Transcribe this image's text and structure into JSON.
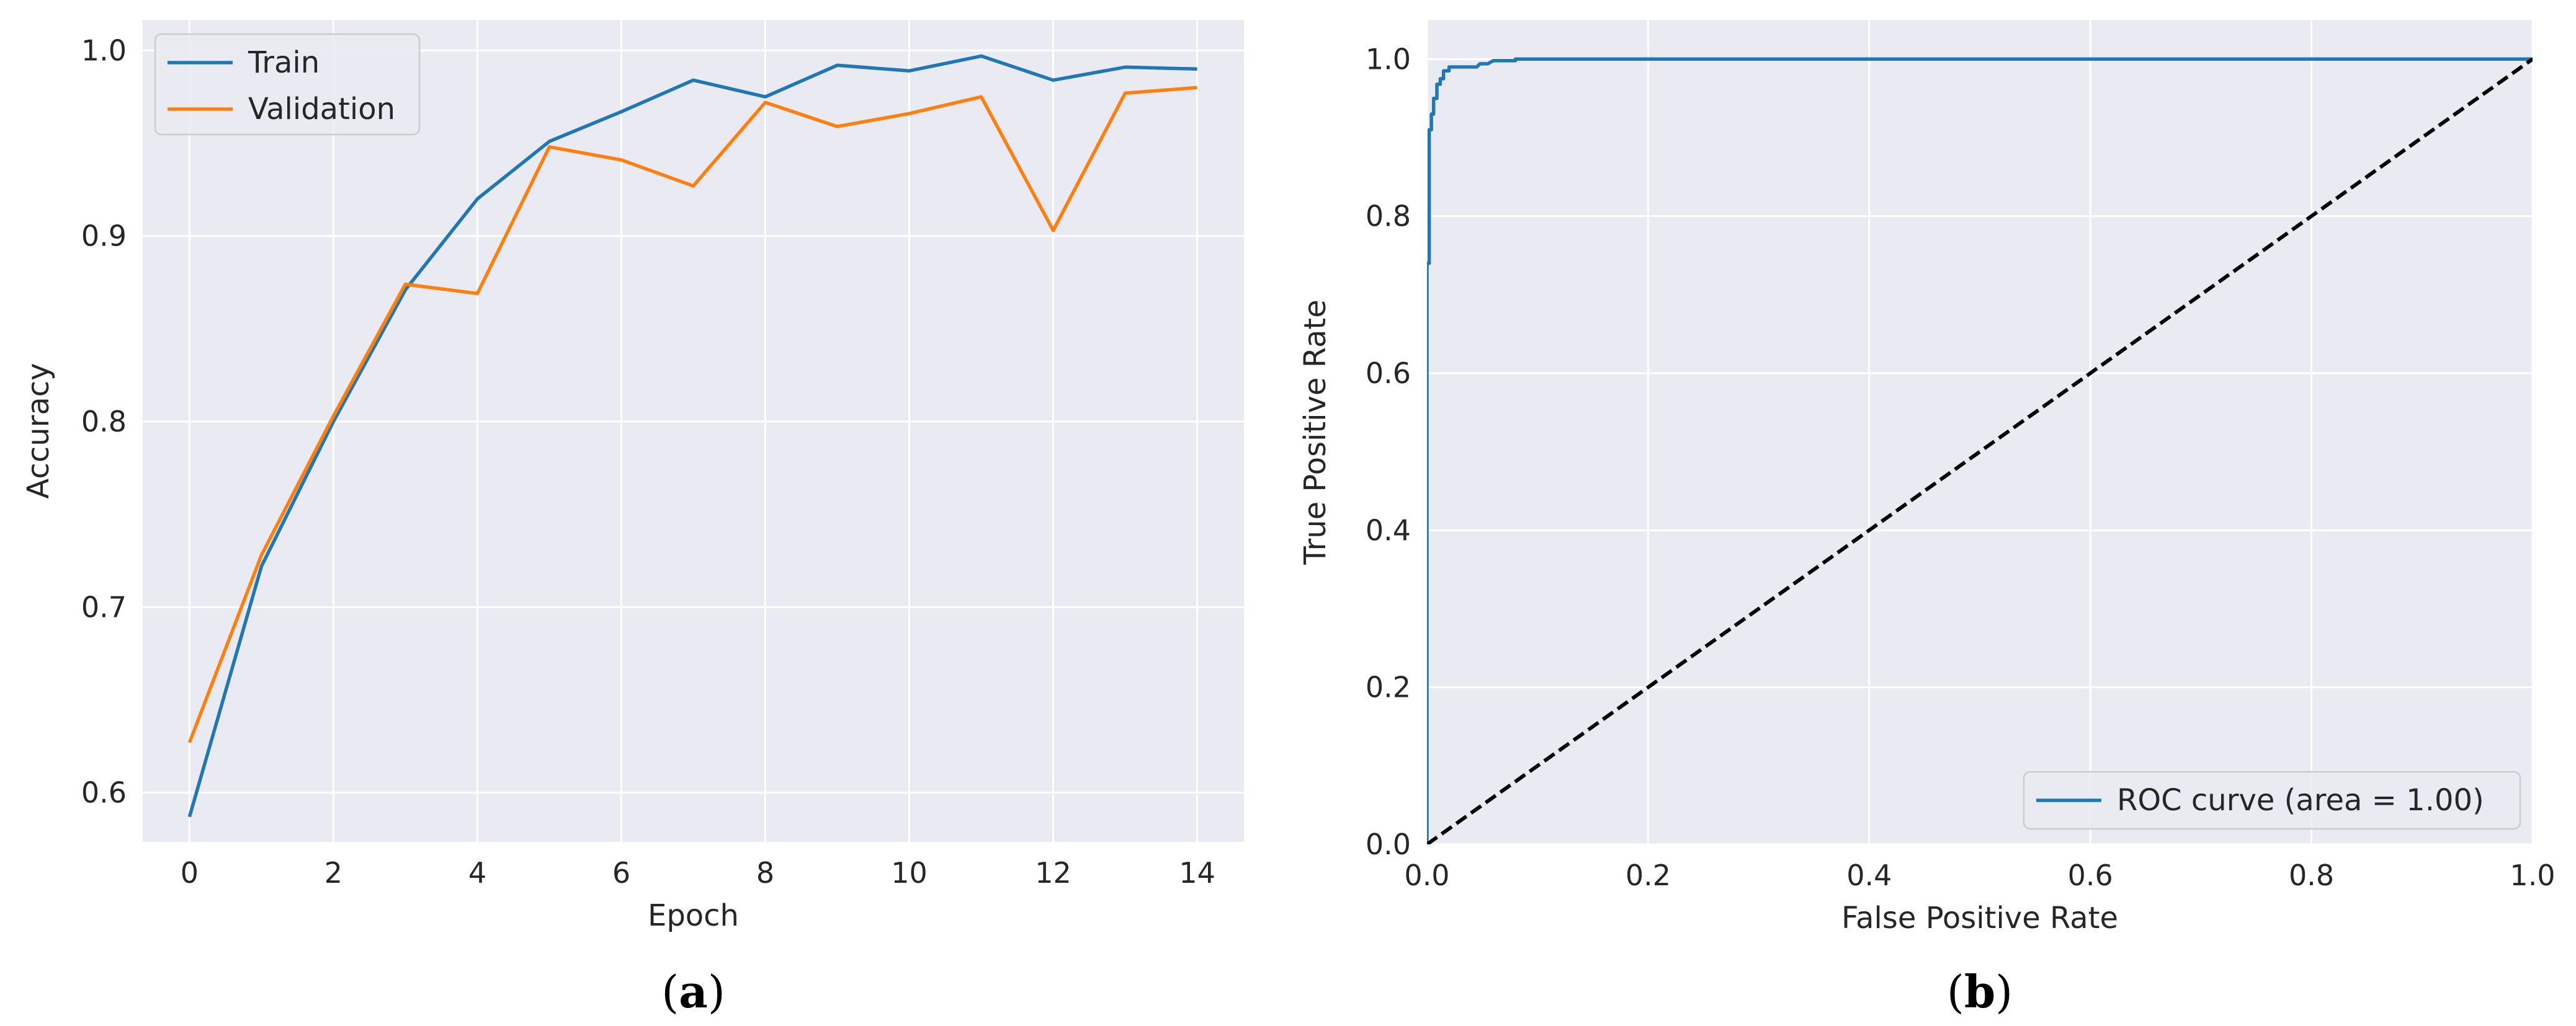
{
  "colors": {
    "axes_bg": "#eaeaf2",
    "grid": "#ffffff",
    "train": "#1f77b4",
    "validation": "#ff7f0e",
    "roc": "#1f77b4",
    "diagonal": "#000000",
    "text": "#262626"
  },
  "chart_data": [
    {
      "type": "line",
      "caption": "a",
      "xlabel": "Epoch",
      "ylabel": "Accuracy",
      "xlim": [
        -0.65,
        14.65
      ],
      "ylim": [
        0.5735,
        1.0165
      ],
      "xticks": [
        0,
        2,
        4,
        6,
        8,
        10,
        12,
        14
      ],
      "yticks": [
        0.6,
        0.7,
        0.8,
        0.9,
        1.0
      ],
      "grid": true,
      "legend_position": "upper-left",
      "x": [
        0,
        1,
        2,
        3,
        4,
        5,
        6,
        7,
        8,
        9,
        10,
        11,
        12,
        13,
        14
      ],
      "series": [
        {
          "name": "Train",
          "color_key": "train",
          "values": [
            0.587,
            0.722,
            0.8,
            0.871,
            0.92,
            0.951,
            0.967,
            0.984,
            0.975,
            0.992,
            0.989,
            0.997,
            0.984,
            0.991,
            0.99
          ]
        },
        {
          "name": "Validation",
          "color_key": "validation",
          "values": [
            0.627,
            0.728,
            0.803,
            0.874,
            0.869,
            0.948,
            0.941,
            0.927,
            0.972,
            0.959,
            0.966,
            0.975,
            0.903,
            0.977,
            0.98
          ]
        }
      ]
    },
    {
      "type": "line",
      "caption": "b",
      "xlabel": "False Positive Rate",
      "ylabel": "True Positive Rate",
      "xlim": [
        0.0,
        1.0
      ],
      "ylim": [
        0.0,
        1.05
      ],
      "xticks": [
        0.0,
        0.2,
        0.4,
        0.6,
        0.8,
        1.0
      ],
      "yticks": [
        0.0,
        0.2,
        0.4,
        0.6,
        0.8,
        1.0
      ],
      "grid": true,
      "legend_position": "lower-right",
      "series": [
        {
          "name": "ROC curve (area = 1.00)",
          "color_key": "roc",
          "x": [
            0.0,
            0.0,
            0.002,
            0.002,
            0.004,
            0.004,
            0.006,
            0.006,
            0.009,
            0.009,
            0.012,
            0.012,
            0.015,
            0.015,
            0.02,
            0.02,
            0.045,
            0.048,
            0.055,
            0.06,
            0.08,
            0.08,
            1.0
          ],
          "y": [
            0.0,
            0.74,
            0.74,
            0.91,
            0.91,
            0.93,
            0.93,
            0.95,
            0.95,
            0.968,
            0.968,
            0.975,
            0.975,
            0.985,
            0.985,
            0.99,
            0.99,
            0.994,
            0.994,
            0.998,
            0.998,
            1.0,
            1.0
          ]
        },
        {
          "name": "",
          "color_key": "diagonal",
          "dashed": true,
          "x": [
            0.0,
            1.0
          ],
          "y": [
            0.0,
            1.0
          ]
        }
      ]
    }
  ]
}
